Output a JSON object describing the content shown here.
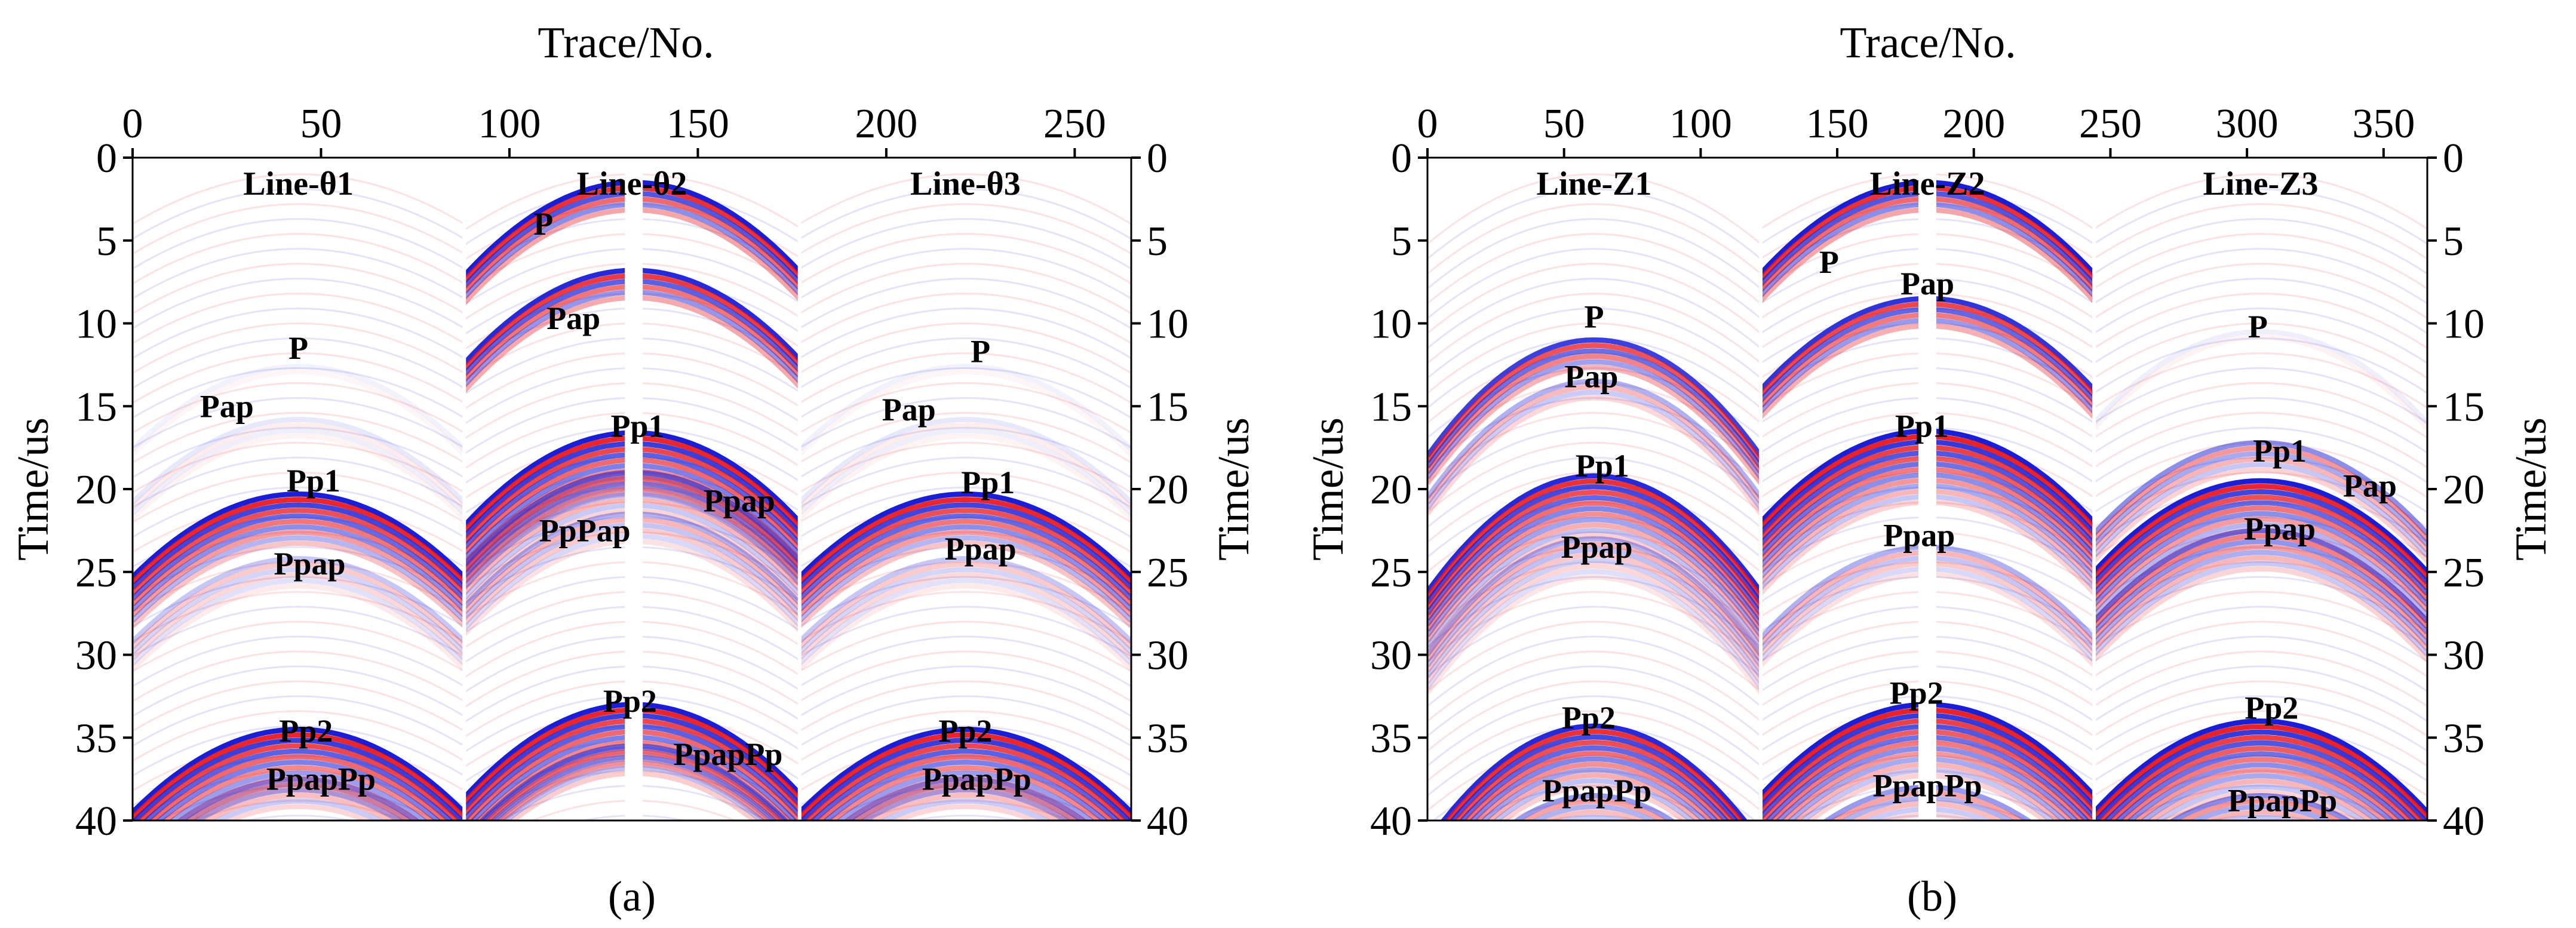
{
  "chart_data": [
    {
      "type": "heatmap",
      "panel_label": "(a)",
      "xlabel": "Trace/No.",
      "ylabel": "Time/us",
      "xlim": [
        0,
        265
      ],
      "ylim": [
        40,
        0
      ],
      "xticks": [
        0,
        50,
        100,
        150,
        200,
        250
      ],
      "yticks": [
        0,
        5,
        10,
        15,
        20,
        25,
        30,
        35,
        40
      ],
      "colors": {
        "positive": "#e8141c",
        "negative": "#1a1fd6",
        "zero": "#ffffff"
      },
      "gathers": [
        {
          "name": "Line-θ1",
          "x_range": [
            0,
            88
          ],
          "apex_trace": 44,
          "curvature": 5.0,
          "events": [
            {
              "label": "P",
              "t0": 12.6,
              "amp": 0.06,
              "cycles": 1,
              "label_x": 44,
              "label_t": 11.5
            },
            {
              "label": "Pap",
              "t0": 15.8,
              "amp": 0.1,
              "cycles": 2,
              "label_x": 25,
              "label_t": 15.0
            },
            {
              "label": "Pp1",
              "t0": 20.3,
              "amp": 1.0,
              "cycles": 5,
              "label_x": 48,
              "label_t": 19.5
            },
            {
              "label": "Ppap",
              "t0": 24.2,
              "amp": 0.25,
              "cycles": 3,
              "label_x": 47,
              "label_t": 24.5
            },
            {
              "label": "Pp2",
              "t0": 34.5,
              "amp": 1.0,
              "cycles": 6,
              "label_x": 46,
              "label_t": 34.6
            },
            {
              "label": "PpapPp",
              "t0": 37.5,
              "amp": 0.45,
              "cycles": 3,
              "label_x": 50,
              "label_t": 37.5
            }
          ]
        },
        {
          "name": "Line-θ2",
          "x_range": [
            88,
            177
          ],
          "apex_trace": 133,
          "curvature": 5.5,
          "events": [
            {
              "label": "P",
              "t0": 1.5,
              "amp": 1.0,
              "cycles": 3,
              "label_x": 109,
              "label_t": 4.0
            },
            {
              "label": "Pap",
              "t0": 6.8,
              "amp": 0.95,
              "cycles": 3,
              "label_x": 117,
              "label_t": 9.7
            },
            {
              "label": "Pp1",
              "t0": 16.6,
              "amp": 1.0,
              "cycles": 6,
              "label_x": 134,
              "label_t": 16.2
            },
            {
              "label": "Ppap",
              "t0": 19.0,
              "amp": 0.6,
              "cycles": 4,
              "label_x": 161,
              "label_t": 20.7
            },
            {
              "label": "PpPap",
              "t0": 21.5,
              "amp": 0.35,
              "cycles": 3,
              "label_x": 120,
              "label_t": 22.5
            },
            {
              "label": "Pp2",
              "t0": 33.0,
              "amp": 1.0,
              "cycles": 6,
              "label_x": 132,
              "label_t": 32.8
            },
            {
              "label": "PpapPp",
              "t0": 35.5,
              "amp": 0.55,
              "cycles": 3,
              "label_x": 158,
              "label_t": 36.0
            }
          ]
        },
        {
          "name": "Line-θ3",
          "x_range": [
            177,
            265
          ],
          "apex_trace": 221,
          "curvature": 5.0,
          "events": [
            {
              "label": "P",
              "t0": 12.6,
              "amp": 0.06,
              "cycles": 1,
              "label_x": 225,
              "label_t": 11.7
            },
            {
              "label": "Pap",
              "t0": 15.8,
              "amp": 0.1,
              "cycles": 2,
              "label_x": 206,
              "label_t": 15.2
            },
            {
              "label": "Pp1",
              "t0": 20.3,
              "amp": 1.0,
              "cycles": 5,
              "label_x": 227,
              "label_t": 19.6
            },
            {
              "label": "Ppap",
              "t0": 24.2,
              "amp": 0.25,
              "cycles": 3,
              "label_x": 225,
              "label_t": 23.6
            },
            {
              "label": "Pp2",
              "t0": 34.5,
              "amp": 1.0,
              "cycles": 6,
              "label_x": 221,
              "label_t": 34.6
            },
            {
              "label": "PpapPp",
              "t0": 37.5,
              "amp": 0.45,
              "cycles": 3,
              "label_x": 224,
              "label_t": 37.5
            }
          ]
        }
      ]
    },
    {
      "type": "heatmap",
      "panel_label": "(b)",
      "xlabel": "Trace/No.",
      "ylabel": "Time/us",
      "xlim": [
        0,
        366
      ],
      "ylim": [
        40,
        0
      ],
      "xticks": [
        0,
        50,
        100,
        150,
        200,
        250,
        300,
        350
      ],
      "yticks": [
        0,
        5,
        10,
        15,
        20,
        25,
        30,
        35,
        40
      ],
      "colors": {
        "positive": "#e8141c",
        "negative": "#1a1fd6",
        "zero": "#ffffff"
      },
      "gathers": [
        {
          "name": "Line-Z1",
          "x_range": [
            0,
            122
          ],
          "apex_trace": 61,
          "curvature": 7.0,
          "events": [
            {
              "label": "P",
              "t0": 11.0,
              "amp": 0.85,
              "cycles": 3,
              "label_x": 61,
              "label_t": 9.6
            },
            {
              "label": "Pap",
              "t0": 13.5,
              "amp": 0.35,
              "cycles": 2,
              "label_x": 60,
              "label_t": 13.2
            },
            {
              "label": "Pp1",
              "t0": 19.2,
              "amp": 0.95,
              "cycles": 6,
              "label_x": 64,
              "label_t": 18.6
            },
            {
              "label": "Ppap",
              "t0": 23.0,
              "amp": 0.35,
              "cycles": 4,
              "label_x": 62,
              "label_t": 23.5
            },
            {
              "label": "Pp2",
              "t0": 34.3,
              "amp": 0.95,
              "cycles": 6,
              "label_x": 59,
              "label_t": 33.8
            },
            {
              "label": "PpapPp",
              "t0": 38.5,
              "amp": 0.45,
              "cycles": 3,
              "label_x": 62,
              "label_t": 38.2
            }
          ]
        },
        {
          "name": "Line-Z2",
          "x_range": [
            122,
            244
          ],
          "apex_trace": 183,
          "curvature": 5.5,
          "events": [
            {
              "label": "P",
              "t0": 1.5,
              "amp": 1.0,
              "cycles": 3,
              "label_x": 147,
              "label_t": 6.3
            },
            {
              "label": "Pap",
              "t0": 8.5,
              "amp": 0.9,
              "cycles": 3,
              "label_x": 183,
              "label_t": 7.6
            },
            {
              "label": "Pp1",
              "t0": 16.5,
              "amp": 1.0,
              "cycles": 7,
              "label_x": 181,
              "label_t": 16.2
            },
            {
              "label": "Ppap",
              "t0": 23.5,
              "amp": 0.35,
              "cycles": 3,
              "label_x": 180,
              "label_t": 22.8
            },
            {
              "label": "Pp2",
              "t0": 33.0,
              "amp": 1.0,
              "cycles": 7,
              "label_x": 179,
              "label_t": 32.3
            },
            {
              "label": "PpapPp",
              "t0": 38.0,
              "amp": 0.45,
              "cycles": 3,
              "label_x": 183,
              "label_t": 37.9
            }
          ]
        },
        {
          "name": "Line-Z3",
          "x_range": [
            244,
            366
          ],
          "apex_trace": 305,
          "curvature": 5.5,
          "events": [
            {
              "label": "P",
              "t0": 10.5,
              "amp": 0.07,
              "cycles": 1,
              "label_x": 304,
              "label_t": 10.2
            },
            {
              "label": "Pap",
              "t0": 17.2,
              "amp": 0.5,
              "cycles": 3,
              "label_x": 345,
              "label_t": 19.8
            },
            {
              "label": "Pp1",
              "t0": 19.5,
              "amp": 1.0,
              "cycles": 5,
              "label_x": 312,
              "label_t": 17.7
            },
            {
              "label": "Ppap",
              "t0": 22.5,
              "amp": 0.6,
              "cycles": 4,
              "label_x": 312,
              "label_t": 22.4
            },
            {
              "label": "Pp2",
              "t0": 34.0,
              "amp": 1.0,
              "cycles": 7,
              "label_x": 309,
              "label_t": 33.2
            },
            {
              "label": "PpapPp",
              "t0": 38.5,
              "amp": 0.5,
              "cycles": 3,
              "label_x": 313,
              "label_t": 38.8
            }
          ]
        }
      ]
    }
  ]
}
